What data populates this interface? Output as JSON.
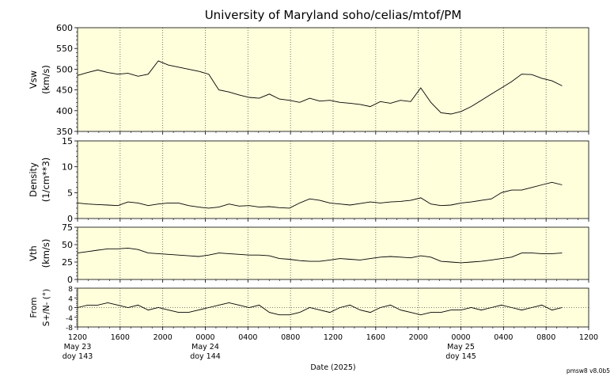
{
  "title": "University of Maryland  soho/celias/mtof/PM",
  "footer_note": "pmsw8 v8.0b5",
  "xlabel": "Date (2025)",
  "x_ticks": [
    "1200",
    "1600",
    "2000",
    "0000",
    "0400",
    "0800",
    "1200",
    "1600",
    "2000",
    "0000",
    "0400",
    "0800",
    "1200"
  ],
  "day_labels": [
    {
      "tick_index": 0,
      "date": "May 23",
      "doy": "doy 143"
    },
    {
      "tick_index": 3,
      "date": "May 24",
      "doy": "doy 144"
    },
    {
      "tick_index": 9,
      "date": "May 25",
      "doy": "doy 145"
    }
  ],
  "colors": {
    "panel_bg": "#ffffdc",
    "line": "#000000",
    "grid": "#555555"
  },
  "chart_data": [
    {
      "type": "line",
      "ylabel_line1": "Vsw",
      "ylabel_line2": "(km/s)",
      "ylim": [
        350,
        600
      ],
      "yticks": [
        "350",
        "400",
        "450",
        "500",
        "550",
        "600"
      ],
      "x_range_hours": [
        0,
        48
      ],
      "x": [
        0,
        1,
        2,
        3,
        4,
        5,
        6,
        7,
        8,
        9,
        10,
        11,
        12,
        13,
        14,
        15,
        16,
        17,
        18,
        19,
        20,
        21,
        22,
        23,
        24,
        25,
        26,
        27,
        28,
        29,
        30,
        31,
        32,
        33,
        34,
        35,
        36,
        37,
        38,
        39,
        40,
        41,
        42,
        43,
        44,
        45,
        46,
        47,
        48
      ],
      "values": [
        485,
        492,
        498,
        492,
        488,
        490,
        483,
        488,
        520,
        510,
        505,
        500,
        495,
        488,
        450,
        445,
        438,
        432,
        430,
        440,
        428,
        425,
        420,
        430,
        423,
        425,
        420,
        418,
        415,
        410,
        422,
        418,
        425,
        422,
        455,
        420,
        395,
        392,
        398,
        410,
        425,
        440,
        455,
        470,
        488,
        487,
        478,
        472,
        460
      ]
    },
    {
      "type": "line",
      "ylabel_line1": "Density",
      "ylabel_line2": "(1/cm**3)",
      "ylim": [
        0,
        15
      ],
      "yticks": [
        "0",
        "5",
        "10",
        "15"
      ],
      "x": [
        0,
        1,
        2,
        3,
        4,
        5,
        6,
        7,
        8,
        9,
        10,
        11,
        12,
        13,
        14,
        15,
        16,
        17,
        18,
        19,
        20,
        21,
        22,
        23,
        24,
        25,
        26,
        27,
        28,
        29,
        30,
        31,
        32,
        33,
        34,
        35,
        36,
        37,
        38,
        39,
        40,
        41,
        42,
        43,
        44,
        45,
        46,
        47,
        48
      ],
      "values": [
        3.0,
        2.8,
        2.7,
        2.6,
        2.5,
        3.2,
        3.0,
        2.5,
        2.8,
        3.0,
        3.0,
        2.5,
        2.2,
        2.0,
        2.2,
        2.8,
        2.4,
        2.5,
        2.2,
        2.3,
        2.1,
        2.0,
        3.0,
        3.8,
        3.5,
        3.0,
        2.8,
        2.6,
        2.9,
        3.2,
        3.0,
        3.2,
        3.3,
        3.5,
        4.0,
        2.8,
        2.5,
        2.6,
        3.0,
        3.2,
        3.5,
        3.8,
        5.0,
        5.5,
        5.5,
        6.0,
        6.5,
        7.0,
        6.5
      ]
    },
    {
      "type": "line",
      "ylabel_line1": "Vth",
      "ylabel_line2": "(km/s)",
      "ylim": [
        0,
        75
      ],
      "yticks": [
        "0",
        "25",
        "50",
        "75"
      ],
      "x": [
        0,
        1,
        2,
        3,
        4,
        5,
        6,
        7,
        8,
        9,
        10,
        11,
        12,
        13,
        14,
        15,
        16,
        17,
        18,
        19,
        20,
        21,
        22,
        23,
        24,
        25,
        26,
        27,
        28,
        29,
        30,
        31,
        32,
        33,
        34,
        35,
        36,
        37,
        38,
        39,
        40,
        41,
        42,
        43,
        44,
        45,
        46,
        47,
        48
      ],
      "values": [
        38,
        40,
        42,
        44,
        44,
        45,
        43,
        38,
        37,
        36,
        35,
        34,
        33,
        35,
        38,
        37,
        36,
        35,
        35,
        34,
        30,
        29,
        27,
        26,
        26,
        28,
        30,
        29,
        28,
        30,
        32,
        33,
        32,
        31,
        34,
        32,
        26,
        25,
        24,
        25,
        26,
        28,
        30,
        32,
        38,
        38,
        37,
        37,
        38
      ]
    },
    {
      "type": "line",
      "ylabel_line1": "From",
      "ylabel_line2": "S+/N- (°)",
      "ylim": [
        -8,
        8
      ],
      "yticks": [
        "-8",
        "-4",
        "0",
        "4",
        "8"
      ],
      "zero_line": true,
      "x": [
        0,
        1,
        2,
        3,
        4,
        5,
        6,
        7,
        8,
        9,
        10,
        11,
        12,
        13,
        14,
        15,
        16,
        17,
        18,
        19,
        20,
        21,
        22,
        23,
        24,
        25,
        26,
        27,
        28,
        29,
        30,
        31,
        32,
        33,
        34,
        35,
        36,
        37,
        38,
        39,
        40,
        41,
        42,
        43,
        44,
        45,
        46,
        47,
        48
      ],
      "values": [
        0,
        1,
        1,
        2,
        1,
        0,
        1,
        -1,
        0,
        -1,
        -2,
        -2,
        -1,
        0,
        1,
        2,
        1,
        0,
        1,
        -2,
        -3,
        -3,
        -2,
        0,
        -1,
        -2,
        0,
        1,
        -1,
        -2,
        0,
        1,
        -1,
        -2,
        -3,
        -2,
        -2,
        -1,
        -1,
        0,
        -1,
        0,
        1,
        0,
        -1,
        0,
        1,
        -1,
        0
      ]
    }
  ]
}
